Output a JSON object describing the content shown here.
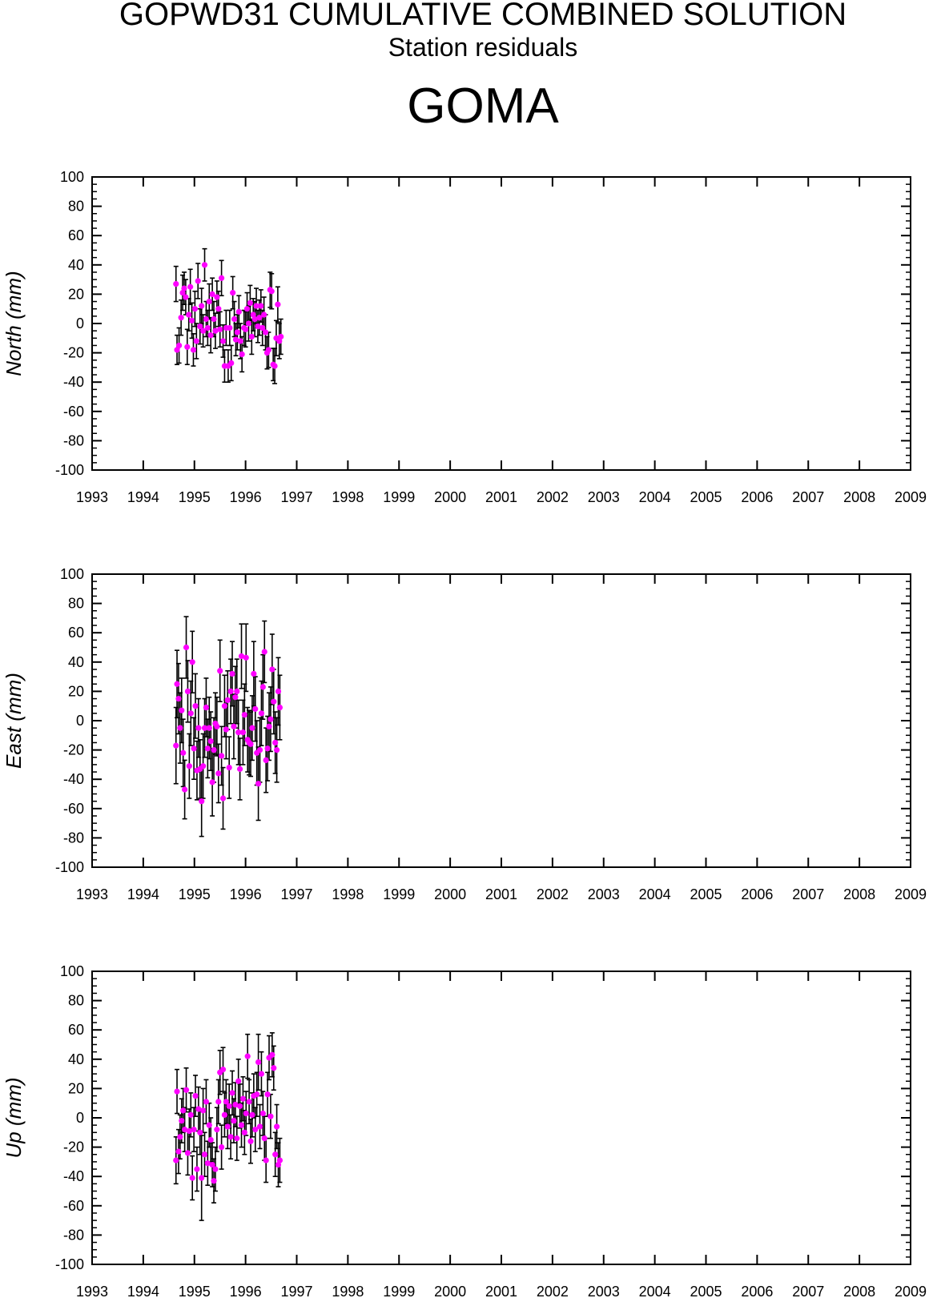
{
  "header": {
    "title": "GOPWD31 CUMULATIVE COMBINED SOLUTION",
    "subtitle": "Station residuals",
    "station": "GOMA"
  },
  "colors": {
    "point": "#ff00ff",
    "errorbar": "#000000",
    "axis": "#000000"
  },
  "chart_data": [
    {
      "type": "scatter",
      "ylabel": "North (mm)",
      "xlim": [
        1993,
        2009
      ],
      "ylim": [
        -100,
        100
      ],
      "xticks": [
        "1993",
        "1994",
        "1995",
        "1996",
        "1997",
        "1998",
        "1999",
        "2000",
        "2001",
        "2002",
        "2003",
        "2004",
        "2005",
        "2006",
        "2007",
        "2008",
        "2009"
      ],
      "yticks": [
        "100",
        "80",
        "60",
        "40",
        "20",
        "0",
        "-20",
        "-40",
        "-60",
        "-80",
        "-100"
      ],
      "grid": false,
      "points": [
        {
          "x": 1994.64,
          "y": 27,
          "err": 12
        },
        {
          "x": 1994.66,
          "y": -18,
          "err": 10
        },
        {
          "x": 1994.7,
          "y": -15,
          "err": 12
        },
        {
          "x": 1994.74,
          "y": 4,
          "err": 12
        },
        {
          "x": 1994.77,
          "y": 21,
          "err": 12
        },
        {
          "x": 1994.8,
          "y": 24,
          "err": 11
        },
        {
          "x": 1994.83,
          "y": 18,
          "err": 12
        },
        {
          "x": 1994.86,
          "y": -16,
          "err": 12
        },
        {
          "x": 1994.89,
          "y": 6,
          "err": 11
        },
        {
          "x": 1994.92,
          "y": 25,
          "err": 12
        },
        {
          "x": 1994.95,
          "y": 2,
          "err": 12
        },
        {
          "x": 1994.98,
          "y": -18,
          "err": 11
        },
        {
          "x": 1995.01,
          "y": 10,
          "err": 12
        },
        {
          "x": 1995.04,
          "y": -12,
          "err": 12
        },
        {
          "x": 1995.07,
          "y": 29,
          "err": 12
        },
        {
          "x": 1995.11,
          "y": -2,
          "err": 12
        },
        {
          "x": 1995.14,
          "y": 12,
          "err": 12
        },
        {
          "x": 1995.17,
          "y": -5,
          "err": 11
        },
        {
          "x": 1995.2,
          "y": 40,
          "err": 11
        },
        {
          "x": 1995.23,
          "y": 3,
          "err": 12
        },
        {
          "x": 1995.26,
          "y": -3,
          "err": 12
        },
        {
          "x": 1995.29,
          "y": 15,
          "err": 12
        },
        {
          "x": 1995.32,
          "y": -8,
          "err": 12
        },
        {
          "x": 1995.35,
          "y": 20,
          "err": 11
        },
        {
          "x": 1995.38,
          "y": 3,
          "err": 12
        },
        {
          "x": 1995.41,
          "y": -5,
          "err": 12
        },
        {
          "x": 1995.44,
          "y": 18,
          "err": 11
        },
        {
          "x": 1995.47,
          "y": 10,
          "err": 12
        },
        {
          "x": 1995.5,
          "y": -4,
          "err": 12
        },
        {
          "x": 1995.53,
          "y": 31,
          "err": 12
        },
        {
          "x": 1995.56,
          "y": -12,
          "err": 11
        },
        {
          "x": 1995.59,
          "y": -29,
          "err": 11
        },
        {
          "x": 1995.62,
          "y": -3,
          "err": 12
        },
        {
          "x": 1995.66,
          "y": -29,
          "err": 11
        },
        {
          "x": 1995.69,
          "y": -3,
          "err": 12
        },
        {
          "x": 1995.72,
          "y": -27,
          "err": 12
        },
        {
          "x": 1995.75,
          "y": 21,
          "err": 11
        },
        {
          "x": 1995.78,
          "y": 3,
          "err": 12
        },
        {
          "x": 1995.81,
          "y": -11,
          "err": 11
        },
        {
          "x": 1995.84,
          "y": -6,
          "err": 12
        },
        {
          "x": 1995.87,
          "y": 8,
          "err": 11
        },
        {
          "x": 1995.9,
          "y": -12,
          "err": 12
        },
        {
          "x": 1995.93,
          "y": -21,
          "err": 12
        },
        {
          "x": 1995.97,
          "y": -3,
          "err": 12
        },
        {
          "x": 1996.0,
          "y": -4,
          "err": 12
        },
        {
          "x": 1996.03,
          "y": 10,
          "err": 11
        },
        {
          "x": 1996.06,
          "y": 0,
          "err": 12
        },
        {
          "x": 1996.09,
          "y": 14,
          "err": 12
        },
        {
          "x": 1996.12,
          "y": -9,
          "err": 12
        },
        {
          "x": 1996.15,
          "y": 6,
          "err": 11
        },
        {
          "x": 1996.18,
          "y": 3,
          "err": 12
        },
        {
          "x": 1996.21,
          "y": 12,
          "err": 12
        },
        {
          "x": 1996.24,
          "y": -2,
          "err": 11
        },
        {
          "x": 1996.27,
          "y": 4,
          "err": 12
        },
        {
          "x": 1996.3,
          "y": 12,
          "err": 11
        },
        {
          "x": 1996.33,
          "y": -3,
          "err": 12
        },
        {
          "x": 1996.36,
          "y": 6,
          "err": 12
        },
        {
          "x": 1996.39,
          "y": -6,
          "err": 12
        },
        {
          "x": 1996.42,
          "y": -20,
          "err": 11
        },
        {
          "x": 1996.45,
          "y": -18,
          "err": 12
        },
        {
          "x": 1996.48,
          "y": 23,
          "err": 12
        },
        {
          "x": 1996.51,
          "y": 22,
          "err": 12
        },
        {
          "x": 1996.54,
          "y": -28,
          "err": 11
        },
        {
          "x": 1996.57,
          "y": -29,
          "err": 12
        },
        {
          "x": 1996.6,
          "y": -10,
          "err": 12
        },
        {
          "x": 1996.63,
          "y": 13,
          "err": 12
        },
        {
          "x": 1996.66,
          "y": -12,
          "err": 12
        },
        {
          "x": 1996.69,
          "y": -9,
          "err": 12
        }
      ]
    },
    {
      "type": "scatter",
      "ylabel": "East (mm)",
      "xlim": [
        1993,
        2009
      ],
      "ylim": [
        -100,
        100
      ],
      "xticks": [
        "1993",
        "1994",
        "1995",
        "1996",
        "1997",
        "1998",
        "1999",
        "2000",
        "2001",
        "2002",
        "2003",
        "2004",
        "2005",
        "2006",
        "2007",
        "2008",
        "2009"
      ],
      "yticks": [
        "100",
        "80",
        "60",
        "40",
        "20",
        "0",
        "-20",
        "-40",
        "-60",
        "-80",
        "-100"
      ],
      "grid": false,
      "points": [
        {
          "x": 1994.64,
          "y": -17,
          "err": 26
        },
        {
          "x": 1994.66,
          "y": 25,
          "err": 23
        },
        {
          "x": 1994.69,
          "y": 15,
          "err": 24
        },
        {
          "x": 1994.72,
          "y": -5,
          "err": 24
        },
        {
          "x": 1994.75,
          "y": 7,
          "err": 22
        },
        {
          "x": 1994.78,
          "y": -22,
          "err": 23
        },
        {
          "x": 1994.81,
          "y": -47,
          "err": 20
        },
        {
          "x": 1994.84,
          "y": 50,
          "err": 21
        },
        {
          "x": 1994.87,
          "y": 20,
          "err": 21
        },
        {
          "x": 1994.9,
          "y": -31,
          "err": 22
        },
        {
          "x": 1994.93,
          "y": 5,
          "err": 22
        },
        {
          "x": 1994.96,
          "y": 40,
          "err": 21
        },
        {
          "x": 1994.99,
          "y": -19,
          "err": 21
        },
        {
          "x": 1995.02,
          "y": 10,
          "err": 22
        },
        {
          "x": 1995.05,
          "y": -34,
          "err": 20
        },
        {
          "x": 1995.08,
          "y": -5,
          "err": 20
        },
        {
          "x": 1995.11,
          "y": -33,
          "err": 20
        },
        {
          "x": 1995.14,
          "y": -55,
          "err": 24
        },
        {
          "x": 1995.17,
          "y": -31,
          "err": 22
        },
        {
          "x": 1995.2,
          "y": -5,
          "err": 20
        },
        {
          "x": 1995.23,
          "y": 9,
          "err": 20
        },
        {
          "x": 1995.26,
          "y": -19,
          "err": 20
        },
        {
          "x": 1995.29,
          "y": -5,
          "err": 21
        },
        {
          "x": 1995.32,
          "y": -14,
          "err": 20
        },
        {
          "x": 1995.35,
          "y": -42,
          "err": 23
        },
        {
          "x": 1995.38,
          "y": -20,
          "err": 22
        },
        {
          "x": 1995.41,
          "y": -2,
          "err": 21
        },
        {
          "x": 1995.44,
          "y": -4,
          "err": 20
        },
        {
          "x": 1995.47,
          "y": -36,
          "err": 20
        },
        {
          "x": 1995.5,
          "y": 34,
          "err": 21
        },
        {
          "x": 1995.53,
          "y": -24,
          "err": 20
        },
        {
          "x": 1995.56,
          "y": -53,
          "err": 21
        },
        {
          "x": 1995.59,
          "y": 10,
          "err": 21
        },
        {
          "x": 1995.62,
          "y": -6,
          "err": 20
        },
        {
          "x": 1995.65,
          "y": 14,
          "err": 20
        },
        {
          "x": 1995.68,
          "y": -32,
          "err": 21
        },
        {
          "x": 1995.71,
          "y": 20,
          "err": 22
        },
        {
          "x": 1995.74,
          "y": 32,
          "err": 22
        },
        {
          "x": 1995.77,
          "y": -4,
          "err": 22
        },
        {
          "x": 1995.8,
          "y": 16,
          "err": 21
        },
        {
          "x": 1995.83,
          "y": 20,
          "err": 22
        },
        {
          "x": 1995.86,
          "y": -8,
          "err": 22
        },
        {
          "x": 1995.89,
          "y": -33,
          "err": 21
        },
        {
          "x": 1995.92,
          "y": 44,
          "err": 22
        },
        {
          "x": 1995.95,
          "y": -8,
          "err": 22
        },
        {
          "x": 1995.98,
          "y": 4,
          "err": 21
        },
        {
          "x": 1996.01,
          "y": 43,
          "err": 23
        },
        {
          "x": 1996.04,
          "y": -13,
          "err": 22
        },
        {
          "x": 1996.07,
          "y": -15,
          "err": 22
        },
        {
          "x": 1996.1,
          "y": -16,
          "err": 22
        },
        {
          "x": 1996.13,
          "y": -5,
          "err": 22
        },
        {
          "x": 1996.16,
          "y": 32,
          "err": 22
        },
        {
          "x": 1996.19,
          "y": 8,
          "err": 22
        },
        {
          "x": 1996.22,
          "y": -22,
          "err": 22
        },
        {
          "x": 1996.25,
          "y": -43,
          "err": 25
        },
        {
          "x": 1996.28,
          "y": -20,
          "err": 22
        },
        {
          "x": 1996.31,
          "y": 5,
          "err": 22
        },
        {
          "x": 1996.34,
          "y": 23,
          "err": 22
        },
        {
          "x": 1996.37,
          "y": 47,
          "err": 21
        },
        {
          "x": 1996.4,
          "y": -27,
          "err": 22
        },
        {
          "x": 1996.43,
          "y": -19,
          "err": 22
        },
        {
          "x": 1996.46,
          "y": -4,
          "err": 23
        },
        {
          "x": 1996.49,
          "y": 1,
          "err": 22
        },
        {
          "x": 1996.52,
          "y": 35,
          "err": 24
        },
        {
          "x": 1996.55,
          "y": 13,
          "err": 22
        },
        {
          "x": 1996.58,
          "y": -15,
          "err": 21
        },
        {
          "x": 1996.61,
          "y": -20,
          "err": 22
        },
        {
          "x": 1996.64,
          "y": 20,
          "err": 23
        },
        {
          "x": 1996.67,
          "y": 9,
          "err": 22
        }
      ]
    },
    {
      "type": "scatter",
      "ylabel": "Up (mm)",
      "xlim": [
        1993,
        2009
      ],
      "ylim": [
        -100,
        100
      ],
      "xticks": [
        "1993",
        "1994",
        "1995",
        "1996",
        "1997",
        "1998",
        "1999",
        "2000",
        "2001",
        "2002",
        "2003",
        "2004",
        "2005",
        "2006",
        "2007",
        "2008",
        "2009"
      ],
      "yticks": [
        "100",
        "80",
        "60",
        "40",
        "20",
        "0",
        "-20",
        "-40",
        "-60",
        "-80",
        "-100"
      ],
      "grid": false,
      "points": [
        {
          "x": 1994.64,
          "y": -29,
          "err": 16
        },
        {
          "x": 1994.66,
          "y": 18,
          "err": 15
        },
        {
          "x": 1994.69,
          "y": -23,
          "err": 15
        },
        {
          "x": 1994.72,
          "y": -13,
          "err": 15
        },
        {
          "x": 1994.75,
          "y": -2,
          "err": 15
        },
        {
          "x": 1994.78,
          "y": 5,
          "err": 15
        },
        {
          "x": 1994.81,
          "y": -8,
          "err": 15
        },
        {
          "x": 1994.84,
          "y": 19,
          "err": 15
        },
        {
          "x": 1994.87,
          "y": -24,
          "err": 15
        },
        {
          "x": 1994.9,
          "y": -9,
          "err": 15
        },
        {
          "x": 1994.93,
          "y": 2,
          "err": 15
        },
        {
          "x": 1994.96,
          "y": -41,
          "err": 15
        },
        {
          "x": 1994.99,
          "y": -8,
          "err": 15
        },
        {
          "x": 1995.02,
          "y": 15,
          "err": 14
        },
        {
          "x": 1995.05,
          "y": -35,
          "err": 15
        },
        {
          "x": 1995.08,
          "y": 6,
          "err": 15
        },
        {
          "x": 1995.11,
          "y": -10,
          "err": 15
        },
        {
          "x": 1995.14,
          "y": -41,
          "err": 29
        },
        {
          "x": 1995.17,
          "y": 5,
          "err": 15
        },
        {
          "x": 1995.2,
          "y": -25,
          "err": 15
        },
        {
          "x": 1995.23,
          "y": 11,
          "err": 15
        },
        {
          "x": 1995.26,
          "y": -31,
          "err": 15
        },
        {
          "x": 1995.29,
          "y": -5,
          "err": 15
        },
        {
          "x": 1995.32,
          "y": -15,
          "err": 15
        },
        {
          "x": 1995.35,
          "y": -32,
          "err": 15
        },
        {
          "x": 1995.38,
          "y": -43,
          "err": 15
        },
        {
          "x": 1995.41,
          "y": -35,
          "err": 15
        },
        {
          "x": 1995.44,
          "y": -8,
          "err": 15
        },
        {
          "x": 1995.47,
          "y": 11,
          "err": 15
        },
        {
          "x": 1995.5,
          "y": 31,
          "err": 15
        },
        {
          "x": 1995.53,
          "y": -20,
          "err": 15
        },
        {
          "x": 1995.56,
          "y": 33,
          "err": 15
        },
        {
          "x": 1995.59,
          "y": 2,
          "err": 15
        },
        {
          "x": 1995.62,
          "y": 11,
          "err": 15
        },
        {
          "x": 1995.65,
          "y": -6,
          "err": 15
        },
        {
          "x": 1995.68,
          "y": 8,
          "err": 15
        },
        {
          "x": 1995.71,
          "y": -13,
          "err": 15
        },
        {
          "x": 1995.74,
          "y": 17,
          "err": 15
        },
        {
          "x": 1995.77,
          "y": -2,
          "err": 15
        },
        {
          "x": 1995.8,
          "y": 9,
          "err": 15
        },
        {
          "x": 1995.83,
          "y": -14,
          "err": 15
        },
        {
          "x": 1995.86,
          "y": 25,
          "err": 15
        },
        {
          "x": 1995.89,
          "y": 8,
          "err": 15
        },
        {
          "x": 1995.92,
          "y": -5,
          "err": 15
        },
        {
          "x": 1995.95,
          "y": 13,
          "err": 15
        },
        {
          "x": 1995.98,
          "y": -10,
          "err": 15
        },
        {
          "x": 1996.01,
          "y": 3,
          "err": 15
        },
        {
          "x": 1996.04,
          "y": 42,
          "err": 15
        },
        {
          "x": 1996.07,
          "y": 11,
          "err": 15
        },
        {
          "x": 1996.1,
          "y": -16,
          "err": 15
        },
        {
          "x": 1996.13,
          "y": 2,
          "err": 15
        },
        {
          "x": 1996.16,
          "y": 15,
          "err": 15
        },
        {
          "x": 1996.19,
          "y": -8,
          "err": 15
        },
        {
          "x": 1996.22,
          "y": 16,
          "err": 15
        },
        {
          "x": 1996.25,
          "y": 38,
          "err": 19
        },
        {
          "x": 1996.28,
          "y": -6,
          "err": 15
        },
        {
          "x": 1996.31,
          "y": 30,
          "err": 15
        },
        {
          "x": 1996.34,
          "y": 3,
          "err": 15
        },
        {
          "x": 1996.37,
          "y": -14,
          "err": 15
        },
        {
          "x": 1996.4,
          "y": -29,
          "err": 15
        },
        {
          "x": 1996.43,
          "y": 16,
          "err": 15
        },
        {
          "x": 1996.46,
          "y": 41,
          "err": 15
        },
        {
          "x": 1996.49,
          "y": 1,
          "err": 15
        },
        {
          "x": 1996.52,
          "y": 43,
          "err": 15
        },
        {
          "x": 1996.55,
          "y": 34,
          "err": 15
        },
        {
          "x": 1996.58,
          "y": -25,
          "err": 15
        },
        {
          "x": 1996.61,
          "y": -6,
          "err": 15
        },
        {
          "x": 1996.64,
          "y": -32,
          "err": 15
        },
        {
          "x": 1996.67,
          "y": -29,
          "err": 15
        }
      ]
    }
  ]
}
